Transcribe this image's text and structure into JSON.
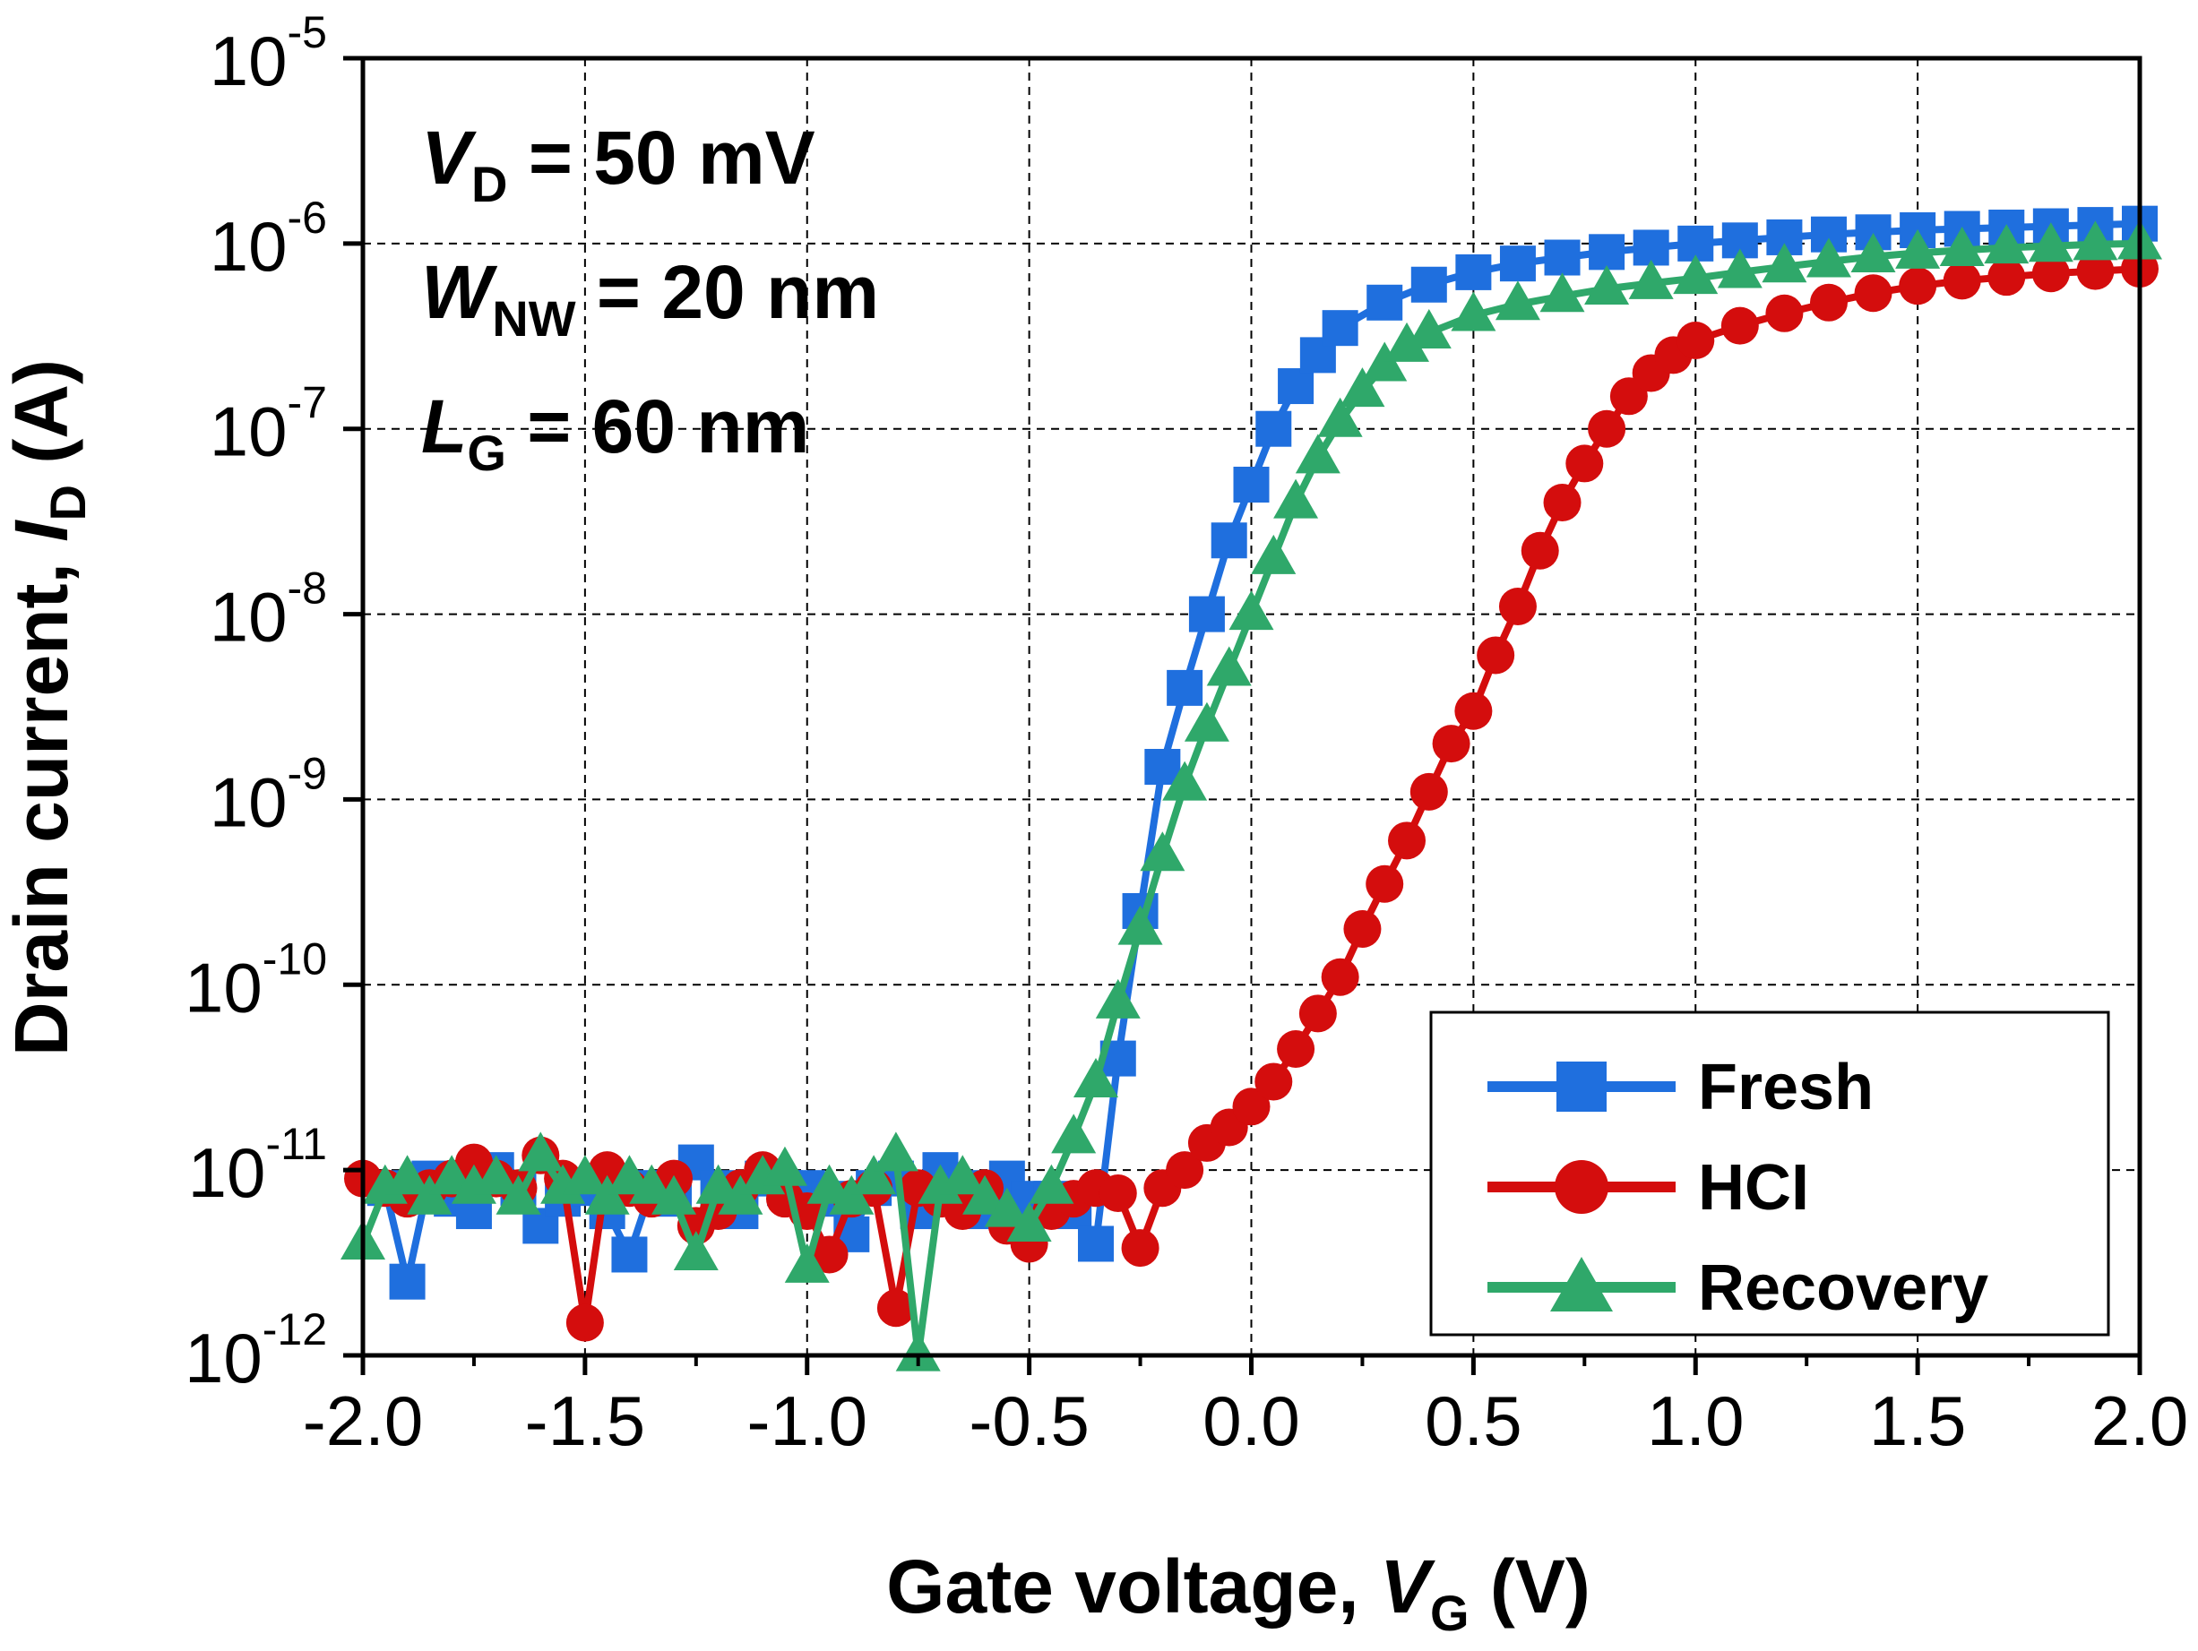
{
  "chart_data": {
    "type": "line",
    "xlabel": {
      "main": "Gate voltage, ",
      "var": "V",
      "sub": "G",
      "unit": " (V)"
    },
    "ylabel": {
      "main": "Drain current, ",
      "var": "I",
      "sub": "D",
      "unit": " (A)"
    },
    "xlim": [
      -2.0,
      2.0
    ],
    "ylim": [
      1e-12,
      1e-05
    ],
    "yscale": "log",
    "grid": true,
    "x_ticks": [
      "-2.0",
      "-1.5",
      "-1.0",
      "-0.5",
      "0.0",
      "0.5",
      "1.0",
      "1.5",
      "2.0"
    ],
    "y_ticks": [
      {
        "base": "10",
        "exp": "-12"
      },
      {
        "base": "10",
        "exp": "-11"
      },
      {
        "base": "10",
        "exp": "-10"
      },
      {
        "base": "10",
        "exp": "-9"
      },
      {
        "base": "10",
        "exp": "-8"
      },
      {
        "base": "10",
        "exp": "-7"
      },
      {
        "base": "10",
        "exp": "-6"
      },
      {
        "base": "10",
        "exp": "-5"
      }
    ],
    "annotations": [
      {
        "var": "V",
        "sub": "D",
        "rest": " = 50 mV"
      },
      {
        "var": "W",
        "sub": "NW",
        "rest": " = 20 nm"
      },
      {
        "var": "L",
        "sub": "G",
        "rest": " = 60 nm"
      }
    ],
    "legend_position": "bottom-right",
    "series": [
      {
        "name": "Fresh",
        "color": "#1f6fde",
        "marker": "square",
        "x": [
          -1.95,
          -1.9,
          -1.85,
          -1.8,
          -1.75,
          -1.7,
          -1.65,
          -1.6,
          -1.55,
          -1.5,
          -1.45,
          -1.4,
          -1.35,
          -1.3,
          -1.25,
          -1.2,
          -1.15,
          -1.1,
          -1.05,
          -1.0,
          -0.95,
          -0.9,
          -0.85,
          -0.8,
          -0.75,
          -0.7,
          -0.65,
          -0.6,
          -0.55,
          -0.5,
          -0.45,
          -0.4,
          -0.35,
          -0.3,
          -0.25,
          -0.2,
          -0.15,
          -0.1,
          -0.05,
          0.0,
          0.05,
          0.1,
          0.15,
          0.2,
          0.3,
          0.4,
          0.5,
          0.6,
          0.7,
          0.8,
          0.9,
          1.0,
          1.1,
          1.2,
          1.3,
          1.4,
          1.5,
          1.6,
          1.7,
          1.8,
          1.9,
          2.0
        ],
        "y": [
          8e-12,
          2.5e-12,
          9e-12,
          7e-12,
          6e-12,
          1e-11,
          8e-12,
          5e-12,
          7e-12,
          8e-12,
          6e-12,
          3.5e-12,
          8e-12,
          7e-12,
          1.1e-11,
          8e-12,
          6e-12,
          9e-12,
          8e-12,
          8e-12,
          7e-12,
          4.5e-12,
          8e-12,
          9e-12,
          6e-12,
          1e-11,
          8e-12,
          6e-12,
          9e-12,
          7e-12,
          7e-12,
          6e-12,
          4e-12,
          4e-11,
          2.5e-10,
          1.5e-09,
          4e-09,
          1e-08,
          2.5e-08,
          5e-08,
          1e-07,
          1.7e-07,
          2.5e-07,
          3.5e-07,
          4.8e-07,
          6e-07,
          7e-07,
          7.8e-07,
          8.4e-07,
          9e-07,
          9.5e-07,
          1e-06,
          1.04e-06,
          1.08e-06,
          1.12e-06,
          1.15e-06,
          1.18e-06,
          1.2e-06,
          1.22e-06,
          1.24e-06,
          1.26e-06,
          1.28e-06
        ]
      },
      {
        "name": "HCI",
        "color": "#d40d0d",
        "marker": "circle",
        "x": [
          -2.0,
          -1.95,
          -1.9,
          -1.85,
          -1.8,
          -1.75,
          -1.7,
          -1.65,
          -1.6,
          -1.55,
          -1.5,
          -1.45,
          -1.4,
          -1.35,
          -1.3,
          -1.25,
          -1.2,
          -1.15,
          -1.1,
          -1.05,
          -1.0,
          -0.95,
          -0.9,
          -0.85,
          -0.8,
          -0.75,
          -0.7,
          -0.65,
          -0.6,
          -0.55,
          -0.5,
          -0.45,
          -0.4,
          -0.35,
          -0.3,
          -0.25,
          -0.2,
          -0.15,
          -0.1,
          -0.05,
          0.0,
          0.05,
          0.1,
          0.15,
          0.2,
          0.25,
          0.3,
          0.35,
          0.4,
          0.45,
          0.5,
          0.55,
          0.6,
          0.65,
          0.7,
          0.75,
          0.8,
          0.85,
          0.9,
          0.95,
          1.0,
          1.1,
          1.2,
          1.3,
          1.4,
          1.5,
          1.6,
          1.7,
          1.8,
          1.9,
          2.0
        ],
        "y": [
          9e-12,
          8e-12,
          7e-12,
          8e-12,
          9e-12,
          1.1e-11,
          9e-12,
          8e-12,
          1.2e-11,
          9e-12,
          1.5e-12,
          1e-11,
          8e-12,
          7e-12,
          9e-12,
          5e-12,
          6e-12,
          8e-12,
          1e-11,
          7e-12,
          6e-12,
          3.5e-12,
          7e-12,
          8e-12,
          1.8e-12,
          8e-12,
          7e-12,
          6e-12,
          8e-12,
          5e-12,
          4e-12,
          6e-12,
          7e-12,
          8e-12,
          7.5e-12,
          3.8e-12,
          8e-12,
          1e-11,
          1.4e-11,
          1.7e-11,
          2.2e-11,
          3e-11,
          4.5e-11,
          7e-11,
          1.1e-10,
          2e-10,
          3.5e-10,
          6e-10,
          1.1e-09,
          2e-09,
          3e-09,
          6e-09,
          1.1e-08,
          2.2e-08,
          4e-08,
          6.5e-08,
          1e-07,
          1.5e-07,
          2e-07,
          2.5e-07,
          3e-07,
          3.6e-07,
          4.2e-07,
          4.8e-07,
          5.4e-07,
          5.9e-07,
          6.3e-07,
          6.6e-07,
          6.9e-07,
          7.1e-07,
          7.3e-07
        ]
      },
      {
        "name": "Recovery",
        "color": "#2fa86a",
        "marker": "triangle",
        "x": [
          -2.0,
          -1.95,
          -1.9,
          -1.85,
          -1.8,
          -1.75,
          -1.7,
          -1.65,
          -1.6,
          -1.55,
          -1.5,
          -1.45,
          -1.4,
          -1.35,
          -1.3,
          -1.25,
          -1.2,
          -1.15,
          -1.1,
          -1.05,
          -1.0,
          -0.95,
          -0.9,
          -0.85,
          -0.8,
          -0.75,
          -0.7,
          -0.65,
          -0.6,
          -0.55,
          -0.5,
          -0.45,
          -0.4,
          -0.35,
          -0.3,
          -0.25,
          -0.2,
          -0.15,
          -0.1,
          -0.05,
          0.0,
          0.05,
          0.1,
          0.15,
          0.2,
          0.25,
          0.3,
          0.35,
          0.4,
          0.5,
          0.6,
          0.7,
          0.8,
          0.9,
          1.0,
          1.1,
          1.2,
          1.3,
          1.4,
          1.5,
          1.6,
          1.7,
          1.8,
          1.9,
          2.0
        ],
        "y": [
          4e-12,
          8e-12,
          9e-12,
          7e-12,
          9e-12,
          8e-12,
          9e-12,
          7e-12,
          1.2e-11,
          8e-12,
          9e-12,
          7e-12,
          9e-12,
          8e-12,
          7e-12,
          3.5e-12,
          8e-12,
          7e-12,
          9e-12,
          1e-11,
          3e-12,
          8e-12,
          7e-12,
          9e-12,
          1.2e-11,
          1e-12,
          8e-12,
          9e-12,
          7e-12,
          6e-12,
          5e-12,
          8e-12,
          1.5e-11,
          3e-11,
          8e-11,
          2e-10,
          5e-10,
          1.2e-09,
          2.5e-09,
          5e-09,
          1e-08,
          2e-08,
          4e-08,
          7e-08,
          1.1e-07,
          1.6e-07,
          2.2e-07,
          2.8e-07,
          3.3e-07,
          4.1e-07,
          4.7e-07,
          5.2e-07,
          5.7e-07,
          6.1e-07,
          6.5e-07,
          7e-07,
          7.5e-07,
          8e-07,
          8.5e-07,
          8.9e-07,
          9.2e-07,
          9.5e-07,
          9.7e-07,
          9.9e-07,
          1e-06
        ]
      }
    ]
  }
}
